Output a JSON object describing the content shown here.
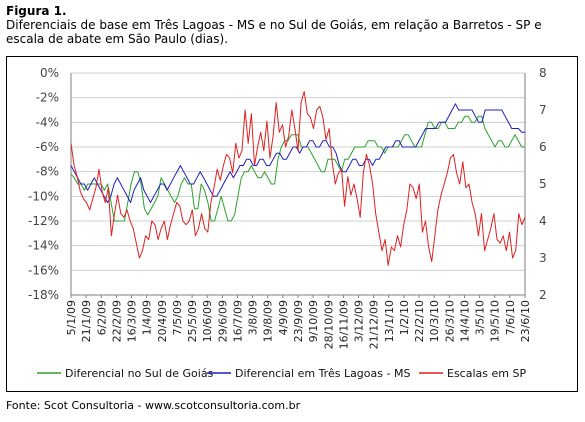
{
  "figure": {
    "label": "Figura 1.",
    "caption": "Diferenciais de base em Três Lagoas - MS e no Sul de Goiás, em relação a Barretos - SP e escala de abate em São Paulo (dias)."
  },
  "source": "Fonte: Scot Consultoria - www.scotconsultoria.com.br",
  "chart_data": {
    "type": "line",
    "title": "",
    "x_tick_labels": [
      "5/1/09",
      "21/1/09",
      "6/2/09",
      "22/2/09",
      "16/3/09",
      "1/4/09",
      "20/4/09",
      "7/5/09",
      "25/5/09",
      "10/6/09",
      "29/6/09",
      "16/7/09",
      "3/8/09",
      "19/8/09",
      "4/9/09",
      "23/9/09",
      "9/10/09",
      "28/10/09",
      "16/11/09",
      "3/12/09",
      "21/12/09",
      "13/1/10",
      "1/2/10",
      "22/2/10",
      "10/3/10",
      "26/3/10",
      "14/4/10",
      "3/5/10",
      "19/5/10",
      "7/6/10",
      "23/6/10"
    ],
    "y_left": {
      "ylim": [
        -18,
        0
      ],
      "ticks": [
        "0%",
        "-2%",
        "-4%",
        "-6%",
        "-8%",
        "-10%",
        "-12%",
        "-14%",
        "-16%",
        "-18%"
      ]
    },
    "y_right": {
      "ylim": [
        2,
        8
      ],
      "ticks": [
        "8",
        "7",
        "6",
        "5",
        "4",
        "3",
        "2"
      ]
    },
    "grid": "horizontal",
    "legend_position": "bottom",
    "series": [
      {
        "name": "Diferencial no Sul de Goiás",
        "axis": "left",
        "color": "#2ca02c",
        "values": [
          -8.2,
          -8.5,
          -9.0,
          -9.0,
          -9.5,
          -9.0,
          -9.0,
          -9.0,
          -9.0,
          -9.0,
          -9.5,
          -9.0,
          -10.5,
          -12.0,
          -12.0,
          -12.0,
          -12.0,
          -10.5,
          -9.0,
          -8.0,
          -8.0,
          -9.0,
          -11.0,
          -11.5,
          -11.0,
          -10.5,
          -10.0,
          -8.5,
          -9.0,
          -9.5,
          -10.0,
          -10.5,
          -10.0,
          -9.0,
          -8.5,
          -9.0,
          -9.0,
          -11.0,
          -11.0,
          -9.0,
          -9.5,
          -10.5,
          -12.0,
          -12.0,
          -11.0,
          -10.0,
          -11.0,
          -12.0,
          -12.0,
          -11.5,
          -10.0,
          -8.5,
          -8.0,
          -8.0,
          -7.5,
          -8.0,
          -8.5,
          -8.5,
          -8.0,
          -8.5,
          -9.0,
          -9.0,
          -7.0,
          -6.0,
          -5.5,
          -5.5,
          -5.0,
          -5.0,
          -5.0,
          -6.0,
          -6.0,
          -6.0,
          -6.5,
          -7.0,
          -7.5,
          -8.0,
          -8.0,
          -7.0,
          -7.0,
          -7.0,
          -7.5,
          -8.0,
          -7.0,
          -7.0,
          -6.5,
          -6.0,
          -6.0,
          -6.0,
          -6.0,
          -5.5,
          -5.5,
          -5.5,
          -6.0,
          -6.0,
          -6.5,
          -6.0,
          -6.0,
          -6.0,
          -6.0,
          -5.5,
          -5.0,
          -5.0,
          -5.5,
          -6.0,
          -6.0,
          -6.0,
          -5.0,
          -4.0,
          -4.0,
          -4.5,
          -4.5,
          -4.0,
          -4.0,
          -4.5,
          -4.5,
          -4.5,
          -4.0,
          -4.0,
          -3.5,
          -3.5,
          -4.0,
          -4.0,
          -3.5,
          -3.5,
          -4.5,
          -5.0,
          -5.5,
          -6.0,
          -5.5,
          -5.5,
          -6.0,
          -6.0,
          -5.5,
          -5.0,
          -5.5,
          -6.0,
          -6.0
        ]
      },
      {
        "name": "Diferencial em Três Lagoas - MS",
        "axis": "left",
        "color": "#1f1fbf",
        "values": [
          -7.5,
          -8.0,
          -8.5,
          -9.0,
          -9.0,
          -9.5,
          -9.0,
          -8.5,
          -9.0,
          -9.5,
          -10.0,
          -10.5,
          -10.0,
          -9.0,
          -8.5,
          -9.0,
          -9.5,
          -10.0,
          -10.5,
          -9.5,
          -9.0,
          -8.5,
          -9.5,
          -10.0,
          -10.5,
          -10.0,
          -9.5,
          -9.0,
          -9.0,
          -9.5,
          -9.0,
          -8.5,
          -8.0,
          -7.5,
          -8.0,
          -8.5,
          -9.0,
          -9.0,
          -8.5,
          -8.0,
          -8.5,
          -9.0,
          -9.5,
          -10.0,
          -10.0,
          -9.5,
          -9.0,
          -8.5,
          -8.0,
          -8.5,
          -8.0,
          -7.5,
          -7.5,
          -7.0,
          -7.0,
          -7.5,
          -7.5,
          -7.0,
          -7.0,
          -7.5,
          -7.5,
          -7.0,
          -6.5,
          -6.5,
          -7.0,
          -7.0,
          -6.5,
          -6.0,
          -6.0,
          -6.5,
          -6.0,
          -6.0,
          -5.5,
          -5.5,
          -6.0,
          -6.0,
          -5.5,
          -5.5,
          -6.0,
          -6.0,
          -6.5,
          -7.5,
          -8.0,
          -8.0,
          -7.5,
          -7.0,
          -7.0,
          -7.5,
          -7.5,
          -7.0,
          -7.0,
          -7.5,
          -7.0,
          -7.0,
          -6.5,
          -6.0,
          -6.0,
          -6.0,
          -5.5,
          -5.5,
          -6.0,
          -6.0,
          -6.0,
          -6.0,
          -6.0,
          -5.5,
          -5.0,
          -4.5,
          -4.5,
          -4.5,
          -4.5,
          -4.0,
          -4.0,
          -4.0,
          -3.5,
          -3.0,
          -2.5,
          -3.0,
          -3.0,
          -3.0,
          -3.0,
          -3.0,
          -3.5,
          -4.0,
          -4.0,
          -3.0,
          -3.0,
          -3.0,
          -3.0,
          -3.0,
          -3.0,
          -3.5,
          -4.0,
          -4.5,
          -4.5,
          -4.5,
          -4.8,
          -4.8
        ]
      },
      {
        "name": "Escalas em SP",
        "axis": "right",
        "color": "#e02020",
        "values": [
          6.1,
          5.5,
          5.2,
          4.8,
          4.6,
          4.5,
          4.3,
          4.6,
          4.9,
          5.4,
          4.8,
          4.5,
          4.9,
          3.6,
          4.2,
          4.7,
          4.2,
          4.1,
          4.3,
          4.0,
          3.8,
          3.4,
          3.0,
          3.2,
          3.6,
          3.5,
          4.0,
          3.9,
          3.5,
          3.8,
          4.0,
          3.5,
          3.9,
          4.2,
          4.5,
          4.4,
          4.0,
          3.9,
          4.0,
          4.3,
          3.6,
          3.8,
          4.2,
          3.8,
          3.7,
          4.5,
          4.9,
          5.4,
          5.1,
          5.5,
          5.8,
          5.7,
          5.3,
          6.1,
          5.7,
          5.9,
          7.0,
          6.1,
          6.9,
          5.5,
          6.0,
          6.4,
          5.9,
          6.7,
          5.7,
          6.3,
          7.2,
          6.4,
          6.6,
          6.0,
          6.3,
          7.0,
          6.5,
          5.9,
          7.2,
          7.5,
          6.9,
          6.8,
          6.5,
          7.0,
          7.1,
          6.8,
          6.2,
          6.5,
          5.6,
          5.0,
          5.3,
          5.4,
          4.4,
          5.2,
          4.7,
          5.0,
          4.6,
          4.1,
          5.3,
          5.8,
          5.5,
          5.0,
          4.2,
          3.7,
          3.2,
          3.5,
          2.8,
          3.3,
          3.2,
          3.6,
          3.3,
          3.9,
          4.3,
          5.0,
          4.9,
          4.6,
          5.0,
          3.7,
          4.0,
          3.3,
          2.9,
          3.6,
          4.3,
          4.7,
          5.0,
          5.3,
          5.7,
          5.8,
          5.3,
          5.0,
          5.6,
          4.9,
          5.0,
          4.5,
          4.2,
          3.6,
          4.2,
          3.2,
          3.5,
          3.8,
          4.2,
          3.5,
          3.4,
          3.6,
          3.2,
          3.7,
          3.0,
          3.2,
          4.2,
          3.9,
          4.1
        ]
      }
    ]
  }
}
